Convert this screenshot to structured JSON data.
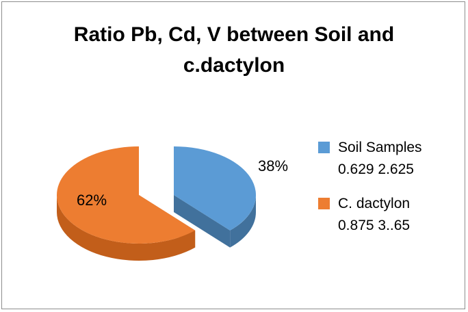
{
  "chart_data": {
    "type": "pie",
    "title_lines": [
      "Ratio Pb, Cd, V between Soil and",
      "c.dactylon"
    ],
    "three_d": true,
    "exploded": true,
    "legend_position": "right",
    "slices": [
      {
        "name_lines": [
          "Soil Samples",
          "0.629 2.625"
        ],
        "value": 38,
        "label": "38%",
        "color": "#5b9bd5",
        "side_color": "#41719c"
      },
      {
        "name_lines": [
          "C. dactylon",
          "0.875 3..65"
        ],
        "value": 62,
        "label": "62%",
        "color": "#ed7d31",
        "side_color": "#c25e1a"
      }
    ]
  }
}
